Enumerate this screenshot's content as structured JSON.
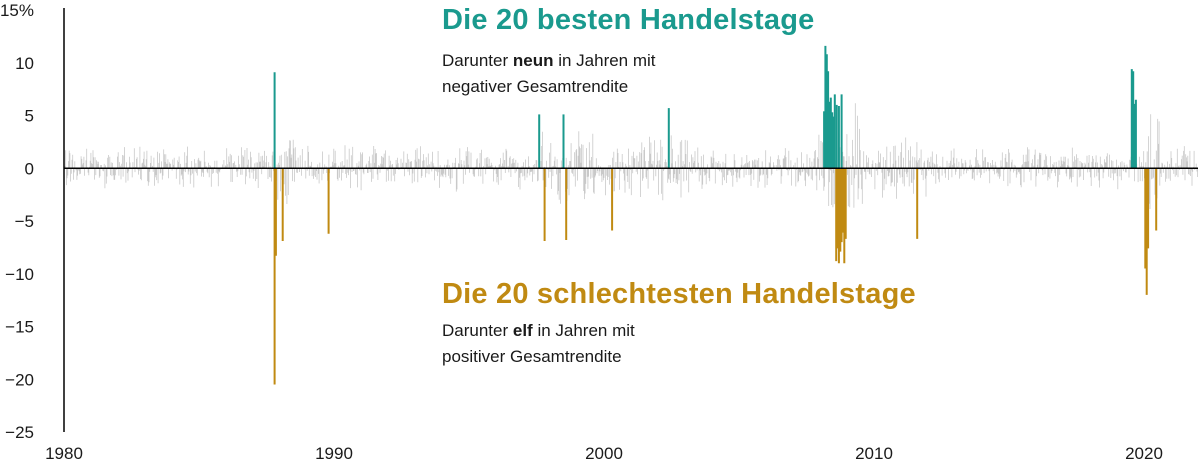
{
  "colors": {
    "best": "#1a9a8e",
    "worst": "#c08a12",
    "daily": "#c9c9c9",
    "axis": "#000000",
    "text": "#1a1a1a"
  },
  "chart_data": {
    "type": "bar",
    "description_of_marks": "daily returns in percent, 1980 to 2021",
    "xlim": [
      1980,
      2022
    ],
    "ylim": [
      -25,
      15
    ],
    "y_ticks": [
      15,
      10,
      5,
      0,
      -5,
      -10,
      -15,
      -20,
      -25
    ],
    "y_tick_labels": [
      "15%",
      "10",
      "5",
      "0",
      "−5",
      "−10",
      "−15",
      "−20",
      "−25"
    ],
    "x_ticks": [
      1980,
      1990,
      2000,
      2010,
      2020
    ],
    "x_tick_labels": [
      "1980",
      "1990",
      "2000",
      "2010",
      "2020"
    ],
    "grid": false,
    "series": [
      {
        "name": "Die 20 besten Handelstage",
        "points": [
          {
            "x": 1987.8,
            "y": 9.1
          },
          {
            "x": 1997.6,
            "y": 5.1
          },
          {
            "x": 1998.5,
            "y": 5.1
          },
          {
            "x": 2002.4,
            "y": 5.7
          },
          {
            "x": 2008.15,
            "y": 5.4
          },
          {
            "x": 2008.2,
            "y": 11.6
          },
          {
            "x": 2008.25,
            "y": 10.8
          },
          {
            "x": 2008.3,
            "y": 9.2
          },
          {
            "x": 2008.35,
            "y": 6.3
          },
          {
            "x": 2008.4,
            "y": 6.7
          },
          {
            "x": 2008.45,
            "y": 5.3
          },
          {
            "x": 2008.5,
            "y": 4.9
          },
          {
            "x": 2008.55,
            "y": 7.0
          },
          {
            "x": 2008.62,
            "y": 6.0
          },
          {
            "x": 2008.7,
            "y": 5.9
          },
          {
            "x": 2008.8,
            "y": 7.0
          },
          {
            "x": 2019.55,
            "y": 9.4
          },
          {
            "x": 2019.6,
            "y": 9.2
          },
          {
            "x": 2019.65,
            "y": 6.1
          },
          {
            "x": 2019.7,
            "y": 6.5
          }
        ]
      },
      {
        "name": "Die 20 schlechtesten Handelstage",
        "points": [
          {
            "x": 1987.8,
            "y": -20.5
          },
          {
            "x": 1987.85,
            "y": -8.3
          },
          {
            "x": 1988.1,
            "y": -6.9
          },
          {
            "x": 1989.8,
            "y": -6.2
          },
          {
            "x": 1997.8,
            "y": -6.9
          },
          {
            "x": 1998.6,
            "y": -6.8
          },
          {
            "x": 2000.3,
            "y": -5.9
          },
          {
            "x": 2008.6,
            "y": -8.8
          },
          {
            "x": 2008.65,
            "y": -7.6
          },
          {
            "x": 2008.7,
            "y": -9.0
          },
          {
            "x": 2008.75,
            "y": -7.9
          },
          {
            "x": 2008.8,
            "y": -7.0
          },
          {
            "x": 2008.85,
            "y": -6.1
          },
          {
            "x": 2008.9,
            "y": -9.0
          },
          {
            "x": 2008.95,
            "y": -6.7
          },
          {
            "x": 2011.6,
            "y": -6.7
          },
          {
            "x": 2020.05,
            "y": -9.5
          },
          {
            "x": 2020.1,
            "y": -12.0
          },
          {
            "x": 2020.15,
            "y": -7.6
          },
          {
            "x": 2020.45,
            "y": -5.9
          }
        ]
      }
    ]
  },
  "annotations": {
    "best": {
      "title": "Die 20 besten Handelstage",
      "line1_pre": "Darunter ",
      "line1_bold": "neun",
      "line1_post": " in Jahren mit",
      "line2": "negativer Gesamtrendite"
    },
    "worst": {
      "title": "Die 20 schlechtesten Handelstage",
      "line1_pre": "Darunter ",
      "line1_bold": "elf",
      "line1_post": " in Jahren mit",
      "line2": "positiver Gesamtrendite"
    }
  }
}
